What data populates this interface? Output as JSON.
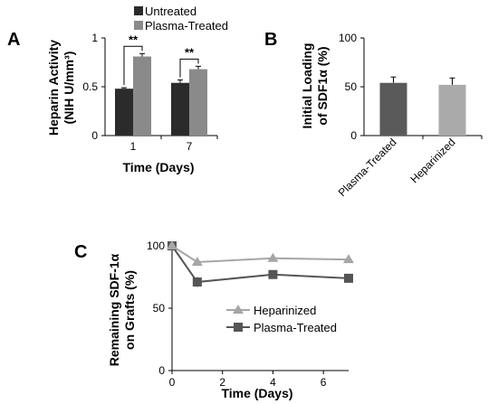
{
  "panel_letters": {
    "a": "A",
    "b": "B",
    "c": "C"
  },
  "chart_data": [
    {
      "panel": "A",
      "type": "bar",
      "xlabel": "Time (Days)",
      "ylabel_line1": "Heparin Activity",
      "ylabel_line2": "(NIH U/mm³)",
      "ylim": [
        0,
        1
      ],
      "yticks": [
        "0",
        "0.5",
        "1"
      ],
      "categories": [
        "1",
        "7"
      ],
      "grid": false,
      "legend_position": "top",
      "series": [
        {
          "name": "Untreated",
          "color": "#2b2b2b",
          "values": [
            0.48,
            0.54
          ],
          "errors": [
            0.01,
            0.03
          ]
        },
        {
          "name": "Plasma-Treated",
          "color": "#8a8a8a",
          "values": [
            0.81,
            0.68
          ],
          "errors": [
            0.03,
            0.03
          ]
        }
      ],
      "significance": [
        "**",
        "**"
      ]
    },
    {
      "panel": "B",
      "type": "bar",
      "ylabel_line1": "Initial Loading",
      "ylabel_line2": "of SDF1α (%)",
      "ylim": [
        0,
        100
      ],
      "yticks": [
        "0",
        "50",
        "100"
      ],
      "categories": [
        "Plasma-Treated",
        "Heparinized"
      ],
      "grid": false,
      "values": [
        54,
        52
      ],
      "errors": [
        6,
        7
      ],
      "colors": [
        "#5a5a5a",
        "#aaaaaa"
      ]
    },
    {
      "panel": "C",
      "type": "line",
      "xlabel": "Time (Days)",
      "ylabel_line1": "Remaining SDF-1α",
      "ylabel_line2": "on Grafts (%)",
      "xlim": [
        0,
        7
      ],
      "ylim": [
        0,
        100
      ],
      "xticks": [
        "0",
        "2",
        "4",
        "6"
      ],
      "yticks": [
        "0",
        "50",
        "100"
      ],
      "grid": false,
      "legend_position": "center-right",
      "x": [
        0,
        1,
        4,
        7
      ],
      "series": [
        {
          "name": "Heparinized",
          "color": "#a6a6a6",
          "marker": "triangle",
          "values": [
            100,
            87,
            90,
            89
          ],
          "errors": [
            0,
            3,
            2,
            2
          ]
        },
        {
          "name": "Plasma-Treated",
          "color": "#555555",
          "marker": "square",
          "values": [
            100,
            71,
            77,
            74
          ],
          "errors": [
            0,
            4,
            3,
            3
          ]
        }
      ]
    }
  ]
}
